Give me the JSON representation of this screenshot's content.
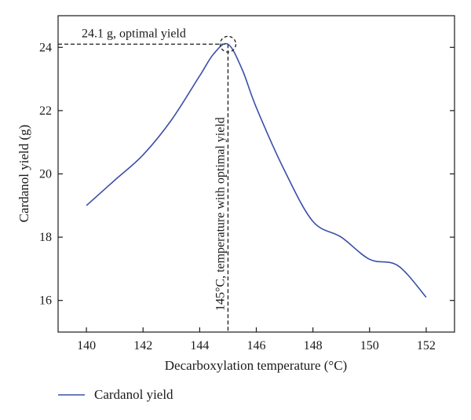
{
  "chart_data": {
    "type": "line",
    "xlabel": "Decarboxylation temperature (°C)",
    "ylabel": "Cardanol yield (g)",
    "xlim": [
      139,
      153
    ],
    "ylim": [
      15,
      25
    ],
    "x_ticks": [
      140,
      142,
      144,
      146,
      148,
      150,
      152
    ],
    "y_ticks": [
      16,
      18,
      20,
      22,
      24
    ],
    "grid": false,
    "legend_position": "bottom-left",
    "series": [
      {
        "name": "Cardanol yield",
        "color": "#3a50a8",
        "x": [
          140,
          141,
          142,
          143,
          144,
          144.5,
          145,
          145.5,
          146,
          147,
          148,
          149,
          150,
          151,
          152
        ],
        "y": [
          19.0,
          19.8,
          20.6,
          21.7,
          23.1,
          23.8,
          24.1,
          23.3,
          22.1,
          20.1,
          18.5,
          18.0,
          17.3,
          17.1,
          16.1
        ]
      }
    ],
    "annotations": {
      "optimal_yield_text": "24.1 g, optimal yield",
      "optimal_temperature_text": "145°C, temperature with optimal yield",
      "optimum_x": 145,
      "optimum_y": 24.1
    }
  }
}
